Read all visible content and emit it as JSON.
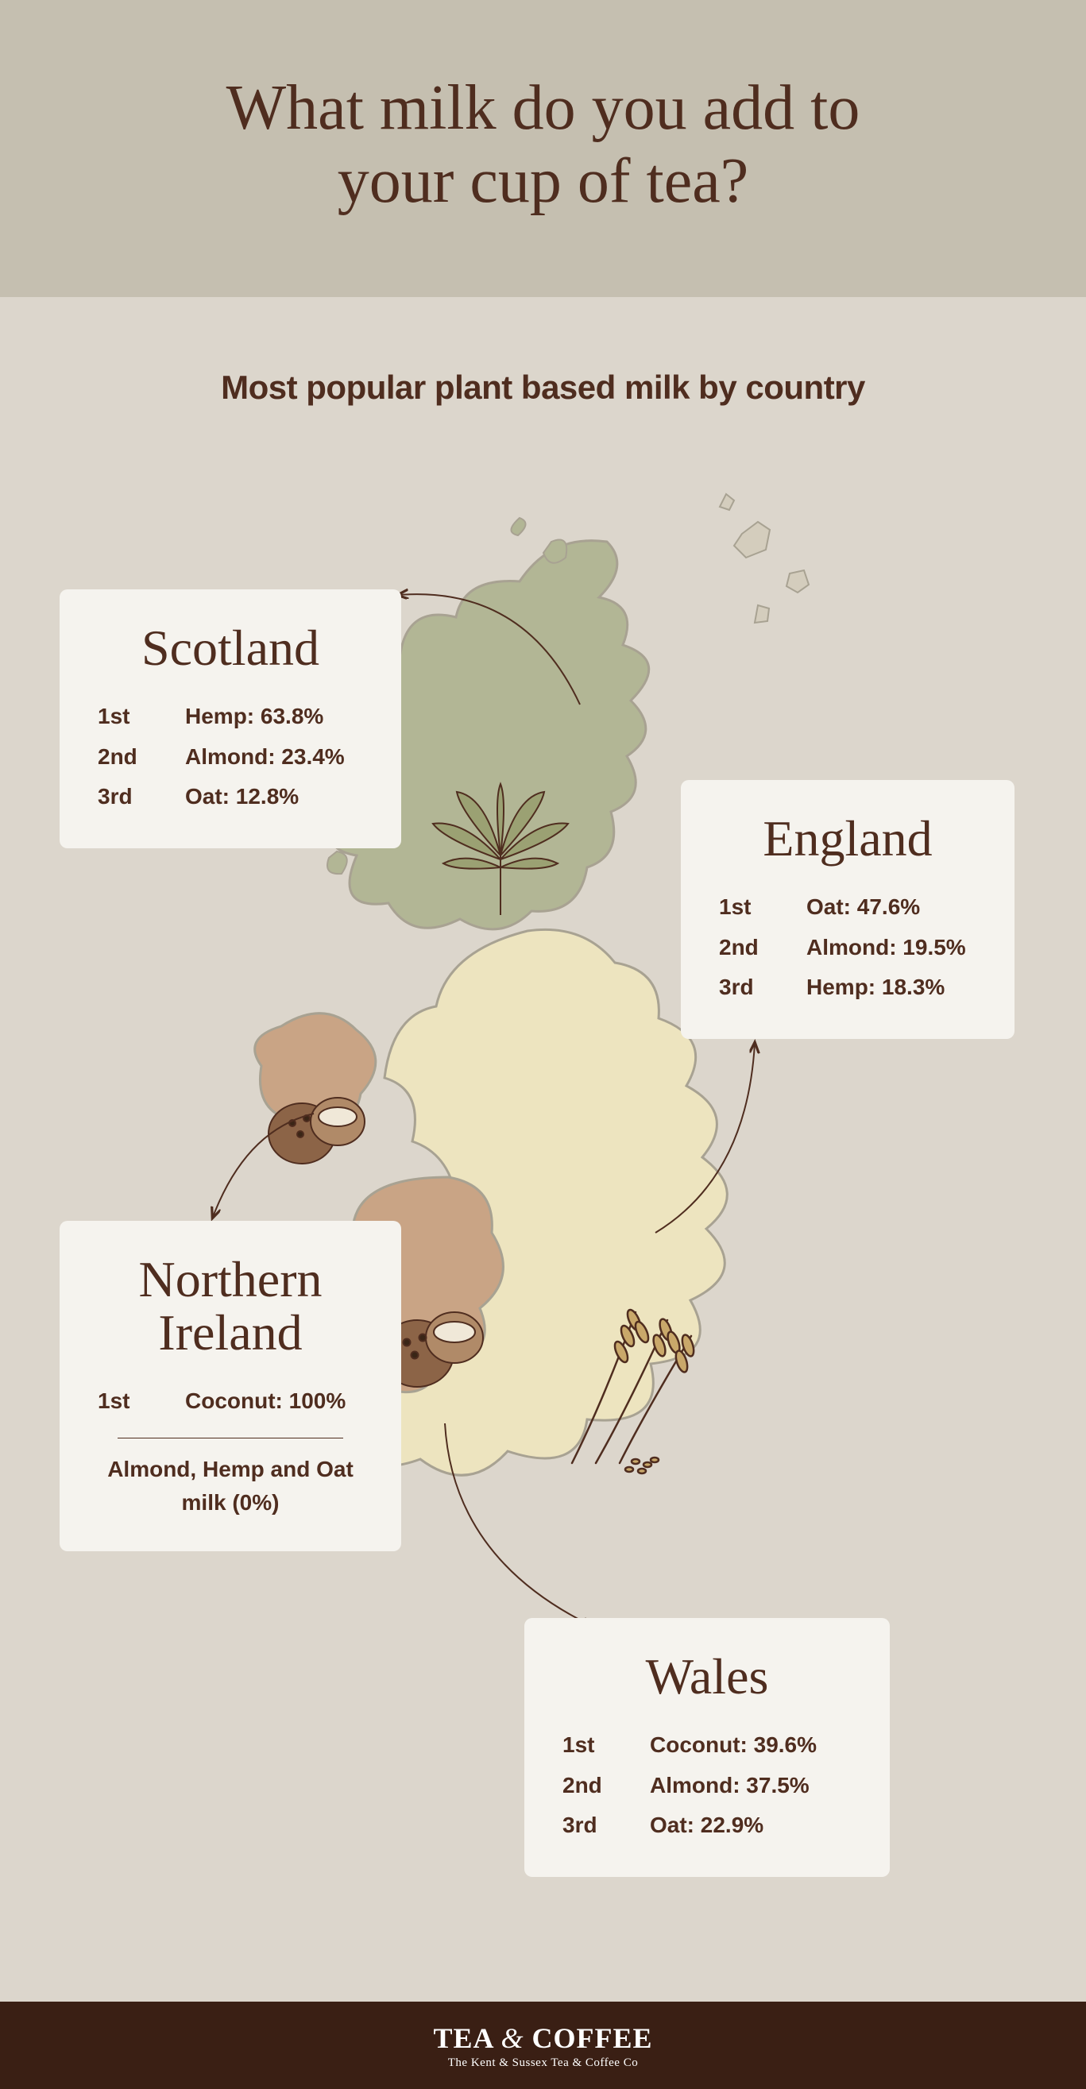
{
  "colors": {
    "page_bg": "#dcd6cc",
    "header_bg": "#c5bfb0",
    "card_bg": "#f5f3ee",
    "text": "#4f2d1f",
    "footer_bg": "#3a1f14",
    "scotland_fill": "#b2b695",
    "england_fill": "#ede4bf",
    "wales_fill": "#c9a485",
    "ni_fill": "#c9a485",
    "map_stroke": "#a8a292"
  },
  "title": "What milk do you add to\nyour cup of tea?",
  "subtitle": "Most popular plant based milk by country",
  "countries": {
    "scotland": {
      "name": "Scotland",
      "icon": "hemp-leaf",
      "rows": [
        {
          "rank": "1st",
          "label": "Hemp: 63.8%"
        },
        {
          "rank": "2nd",
          "label": "Almond: 23.4%"
        },
        {
          "rank": "3rd",
          "label": "Oat: 12.8%"
        }
      ]
    },
    "england": {
      "name": "England",
      "icon": "oat-stalks",
      "rows": [
        {
          "rank": "1st",
          "label": "Oat: 47.6%"
        },
        {
          "rank": "2nd",
          "label": "Almond: 19.5%"
        },
        {
          "rank": "3rd",
          "label": "Hemp: 18.3%"
        }
      ]
    },
    "ni": {
      "name": "Northern\nIreland",
      "icon": "coconut",
      "rows": [
        {
          "rank": "1st",
          "label": "Coconut: 100%"
        }
      ],
      "note": "Almond, Hemp and Oat\nmilk (0%)"
    },
    "wales": {
      "name": "Wales",
      "icon": "coconut",
      "rows": [
        {
          "rank": "1st",
          "label": "Coconut: 39.6%"
        },
        {
          "rank": "2nd",
          "label": "Almond: 37.5%"
        },
        {
          "rank": "3rd",
          "label": "Oat: 22.9%"
        }
      ]
    }
  },
  "footer": {
    "brand_a": "TEA",
    "brand_amp": "&",
    "brand_b": "COFFEE",
    "tagline": "The Kent & Sussex Tea & Coffee Co"
  }
}
